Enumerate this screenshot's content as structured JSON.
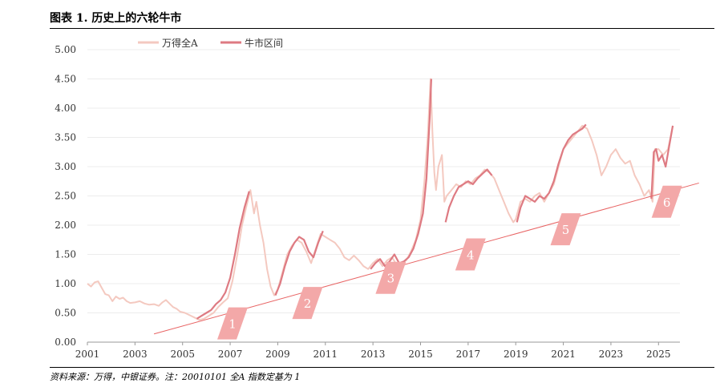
{
  "figure": {
    "title": "图表 1. 历史上的六轮牛市",
    "source": "资料来源：万得，中银证券。注：20010101 全A 指数定基为 1"
  },
  "colors": {
    "wind_all_a": "#f4c9c0",
    "bull_market": "#de7a82",
    "trend_line": "#e86464",
    "bull_label_box": "#f3a8a8",
    "bull_label_text": "#ffffff",
    "grid": "#ececec",
    "axis_text": "#333333"
  },
  "chart_data": {
    "type": "line",
    "title": "历史上的六轮牛市",
    "xlabel": "",
    "ylabel": "",
    "xlim": [
      2001,
      2025.9
    ],
    "ylim": [
      0,
      5.0
    ],
    "x_ticks": [
      "2001",
      "2003",
      "2005",
      "2007",
      "2009",
      "2011",
      "2013",
      "2015",
      "2017",
      "2019",
      "2021",
      "2023",
      "2025"
    ],
    "y_ticks": [
      "0.00",
      "0.50",
      "1.00",
      "1.50",
      "2.00",
      "2.50",
      "3.00",
      "3.50",
      "4.00",
      "4.50",
      "5.00"
    ],
    "grid": "horizontal",
    "legend_position": "top-left",
    "series": [
      {
        "name": "万得全A",
        "x": [
          2001.0,
          2001.15,
          2001.3,
          2001.45,
          2001.6,
          2001.75,
          2001.9,
          2002.05,
          2002.2,
          2002.35,
          2002.5,
          2002.65,
          2002.8,
          2003.0,
          2003.2,
          2003.4,
          2003.6,
          2003.8,
          2004.0,
          2004.15,
          2004.3,
          2004.45,
          2004.6,
          2004.75,
          2004.9,
          2005.1,
          2005.3,
          2005.5,
          2005.7,
          2005.9,
          2006.1,
          2006.3,
          2006.5,
          2006.7,
          2006.9,
          2007.1,
          2007.3,
          2007.5,
          2007.7,
          2007.85,
          2008.0,
          2008.1,
          2008.25,
          2008.4,
          2008.55,
          2008.7,
          2008.85,
          2009.0,
          2009.2,
          2009.4,
          2009.6,
          2009.8,
          2010.0,
          2010.2,
          2010.4,
          2010.6,
          2010.8,
          2011.0,
          2011.2,
          2011.4,
          2011.6,
          2011.8,
          2012.0,
          2012.2,
          2012.4,
          2012.6,
          2012.8,
          2013.0,
          2013.2,
          2013.4,
          2013.6,
          2013.8,
          2014.0,
          2014.2,
          2014.4,
          2014.6,
          2014.8,
          2015.0,
          2015.15,
          2015.3,
          2015.42,
          2015.5,
          2015.58,
          2015.65,
          2015.75,
          2015.9,
          2016.0,
          2016.1,
          2016.3,
          2016.5,
          2016.7,
          2016.9,
          2017.1,
          2017.3,
          2017.5,
          2017.7,
          2017.9,
          2018.1,
          2018.3,
          2018.5,
          2018.7,
          2018.9,
          2019.0,
          2019.2,
          2019.4,
          2019.6,
          2019.8,
          2020.0,
          2020.2,
          2020.4,
          2020.6,
          2020.8,
          2021.0,
          2021.2,
          2021.4,
          2021.6,
          2021.8,
          2022.0,
          2022.2,
          2022.4,
          2022.6,
          2022.8,
          2023.0,
          2023.2,
          2023.4,
          2023.6,
          2023.8,
          2024.0,
          2024.2,
          2024.4,
          2024.6,
          2024.75,
          2024.85,
          2025.0,
          2025.2,
          2025.4,
          2025.6
        ],
        "values": [
          1.0,
          0.95,
          1.02,
          1.04,
          0.93,
          0.82,
          0.8,
          0.7,
          0.78,
          0.74,
          0.76,
          0.7,
          0.67,
          0.68,
          0.7,
          0.66,
          0.64,
          0.65,
          0.62,
          0.68,
          0.72,
          0.66,
          0.6,
          0.57,
          0.52,
          0.5,
          0.46,
          0.42,
          0.38,
          0.4,
          0.45,
          0.5,
          0.6,
          0.68,
          0.75,
          1.05,
          1.5,
          2.0,
          2.35,
          2.6,
          2.2,
          2.4,
          2.0,
          1.7,
          1.25,
          0.95,
          0.8,
          0.9,
          1.2,
          1.5,
          1.65,
          1.75,
          1.7,
          1.55,
          1.35,
          1.6,
          1.85,
          1.8,
          1.75,
          1.7,
          1.6,
          1.45,
          1.4,
          1.48,
          1.4,
          1.3,
          1.25,
          1.35,
          1.42,
          1.3,
          1.4,
          1.45,
          1.32,
          1.35,
          1.4,
          1.55,
          1.75,
          2.1,
          2.7,
          3.5,
          4.5,
          3.6,
          2.9,
          2.6,
          3.0,
          3.2,
          2.4,
          2.5,
          2.6,
          2.7,
          2.65,
          2.75,
          2.7,
          2.8,
          2.85,
          2.95,
          2.9,
          2.8,
          2.6,
          2.4,
          2.2,
          2.05,
          2.1,
          2.4,
          2.45,
          2.4,
          2.5,
          2.55,
          2.4,
          2.55,
          2.7,
          3.0,
          3.3,
          3.4,
          3.5,
          3.6,
          3.7,
          3.65,
          3.45,
          3.2,
          2.85,
          3.0,
          3.2,
          3.3,
          3.15,
          3.05,
          3.1,
          2.85,
          2.7,
          2.5,
          2.6,
          2.4,
          3.3,
          3.3,
          3.2,
          3.3,
          3.7
        ]
      },
      {
        "name": "牛市区间",
        "segments": [
          {
            "label": "1",
            "x": [
              2005.6,
              2005.8,
              2006.0,
              2006.2,
              2006.4,
              2006.6,
              2006.8,
              2007.0,
              2007.2,
              2007.4,
              2007.6,
              2007.8
            ],
            "values": [
              0.4,
              0.45,
              0.5,
              0.55,
              0.65,
              0.72,
              0.85,
              1.1,
              1.5,
              1.95,
              2.3,
              2.58
            ]
          },
          {
            "label": "2",
            "x": [
              2008.9,
              2009.1,
              2009.3,
              2009.5,
              2009.7,
              2009.9,
              2010.1,
              2010.3,
              2010.5,
              2010.7,
              2010.9
            ],
            "values": [
              0.8,
              1.0,
              1.3,
              1.55,
              1.7,
              1.8,
              1.75,
              1.55,
              1.45,
              1.7,
              1.9
            ]
          },
          {
            "label": "3",
            "x": [
              2012.9,
              2013.1,
              2013.3,
              2013.5,
              2013.7,
              2013.9,
              2014.1,
              2014.3,
              2014.5,
              2014.7,
              2014.9,
              2015.1,
              2015.25,
              2015.38,
              2015.45
            ],
            "values": [
              1.25,
              1.35,
              1.42,
              1.3,
              1.38,
              1.5,
              1.35,
              1.38,
              1.45,
              1.6,
              1.85,
              2.2,
              2.8,
              3.8,
              4.5
            ]
          },
          {
            "label": "4",
            "x": [
              2016.05,
              2016.2,
              2016.4,
              2016.6,
              2016.8,
              2017.0,
              2017.2,
              2017.4,
              2017.6,
              2017.8,
              2018.0
            ],
            "values": [
              2.05,
              2.3,
              2.5,
              2.65,
              2.7,
              2.75,
              2.7,
              2.8,
              2.88,
              2.95,
              2.85
            ]
          },
          {
            "label": "5",
            "x": [
              2019.05,
              2019.2,
              2019.4,
              2019.6,
              2019.8,
              2020.0,
              2020.2,
              2020.4,
              2020.6,
              2020.8,
              2021.0,
              2021.2,
              2021.4,
              2021.6,
              2021.8,
              2021.95
            ],
            "values": [
              2.05,
              2.3,
              2.5,
              2.45,
              2.4,
              2.5,
              2.45,
              2.55,
              2.75,
              3.05,
              3.3,
              3.45,
              3.55,
              3.6,
              3.65,
              3.72
            ]
          },
          {
            "label": "6",
            "x": [
              2024.7,
              2024.8,
              2024.9,
              2025.0,
              2025.15,
              2025.3,
              2025.45,
              2025.6
            ],
            "values": [
              2.45,
              3.25,
              3.3,
              3.1,
              3.2,
              3.0,
              3.35,
              3.7
            ]
          }
        ]
      }
    ],
    "trend_line": {
      "x": [
        2003.8,
        2026.7
      ],
      "values": [
        0.14,
        2.72
      ]
    },
    "bull_labels": [
      {
        "label": "1",
        "x": 2007.1,
        "y": 0.32
      },
      {
        "label": "2",
        "x": 2010.25,
        "y": 0.67
      },
      {
        "label": "3",
        "x": 2013.75,
        "y": 1.1
      },
      {
        "label": "4",
        "x": 2017.1,
        "y": 1.5
      },
      {
        "label": "5",
        "x": 2021.1,
        "y": 1.93
      },
      {
        "label": "6",
        "x": 2025.35,
        "y": 2.4
      }
    ]
  }
}
